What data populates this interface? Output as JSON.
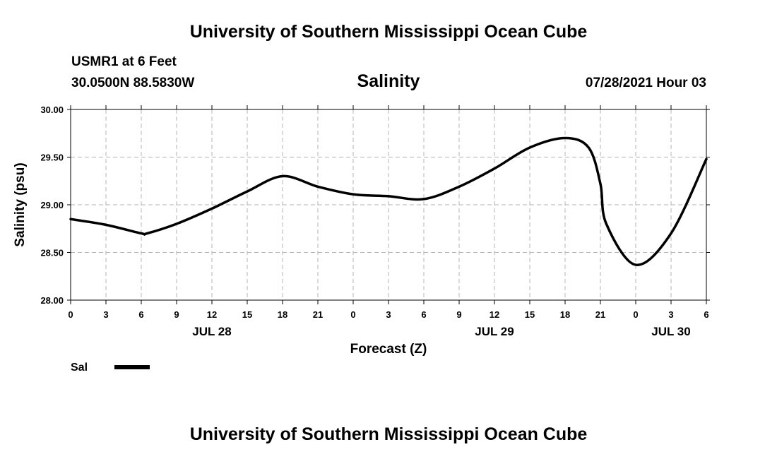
{
  "header": {
    "top_title": "University of Southern Mississippi Ocean Cube",
    "station": "USMR1 at 6 Feet",
    "coords": "30.0500N  88.5830W",
    "datetime": "07/28/2021 Hour 03",
    "bottom_title": "University of Southern Mississippi Ocean Cube"
  },
  "chart_data": {
    "type": "line",
    "title": "Salinity",
    "xlabel": "Forecast (Z)",
    "ylabel": "Salinity (psu)",
    "ylim": [
      28.0,
      30.0
    ],
    "y_ticks": [
      "28.00",
      "28.50",
      "29.00",
      "29.50",
      "30.00"
    ],
    "x_ticks": [
      "0",
      "3",
      "6",
      "9",
      "12",
      "15",
      "18",
      "21",
      "0",
      "3",
      "6",
      "9",
      "12",
      "15",
      "18",
      "21",
      "0",
      "3",
      "6"
    ],
    "date_labels": [
      {
        "text": "JUL 28",
        "at_hour": 12
      },
      {
        "text": "JUL 29",
        "at_hour": 36
      },
      {
        "text": "JUL 30",
        "at_hour": 51
      }
    ],
    "xlim_hours": [
      0,
      54
    ],
    "grid": true,
    "series": [
      {
        "name": "Sal",
        "color": "#000000",
        "x_hours": [
          0,
          3,
          6,
          6.5,
          9,
          12,
          15,
          18,
          21,
          24,
          27,
          30,
          33,
          36,
          39,
          42,
          44,
          45,
          45.5,
          48,
          51,
          54
        ],
        "values": [
          28.85,
          28.79,
          28.7,
          28.7,
          28.8,
          28.96,
          29.14,
          29.3,
          29.19,
          29.11,
          29.09,
          29.06,
          29.19,
          29.38,
          29.6,
          29.7,
          29.6,
          29.22,
          28.8,
          28.37,
          28.7,
          29.48
        ]
      }
    ],
    "legend": {
      "position": "bottom-left",
      "label": "Sal"
    }
  }
}
